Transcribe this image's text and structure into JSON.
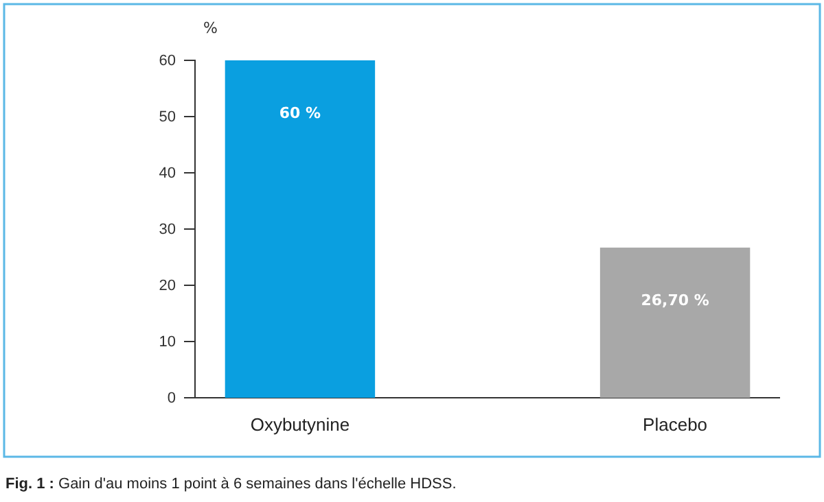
{
  "chart_data": {
    "type": "bar",
    "ylabel": "%",
    "categories": [
      "Oxybutynine",
      "Placebo"
    ],
    "values": [
      60,
      26.7
    ],
    "colors": [
      "#0a9fe0",
      "#a8a8a8"
    ],
    "value_labels": [
      "60 %",
      "26,70 %"
    ],
    "ylim": [
      0,
      60
    ],
    "yticks": [
      0,
      10,
      20,
      30,
      40,
      50,
      60
    ],
    "annotations": [
      "Fig. 1 : Gain d'au moins 1 point à 6 semaines dans l'échelle HDSS."
    ]
  }
}
